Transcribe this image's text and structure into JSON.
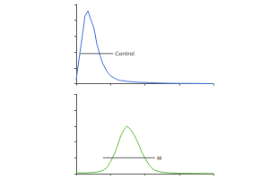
{
  "chart_data": [
    {
      "type": "line",
      "color": "#3a6fd8",
      "log": "x",
      "grid": false,
      "tick_labels": false,
      "x": [
        1,
        1.2,
        1.5,
        1.8,
        2.2,
        2.7,
        3.3,
        4,
        5,
        6,
        8,
        10,
        13,
        16,
        20,
        30,
        50,
        100,
        200,
        500,
        1000,
        10000
      ],
      "values": [
        5,
        30,
        60,
        85,
        92,
        80,
        70,
        50,
        35,
        25,
        15,
        10,
        7,
        5,
        4,
        3,
        2,
        1.5,
        1,
        0.5,
        0.3,
        0
      ],
      "xlim": [
        1,
        10000
      ],
      "xticks": [
        1,
        10,
        100,
        1000,
        10000
      ],
      "ylim": [
        0,
        100
      ],
      "yticks": [
        0,
        20,
        40,
        60,
        80,
        100
      ],
      "annotations": [
        {
          "text": "Control",
          "x": [
            1.3,
            12
          ],
          "y": 38
        }
      ]
    },
    {
      "type": "line",
      "color": "#5bbf3a",
      "log": "x",
      "grid": false,
      "tick_labels": false,
      "x": [
        1,
        2,
        4,
        6,
        8,
        10,
        13,
        16,
        20,
        25,
        30,
        40,
        50,
        65,
        80,
        100,
        130,
        160,
        200,
        300,
        500,
        1000,
        10000
      ],
      "values": [
        1,
        1,
        2,
        4,
        8,
        15,
        25,
        35,
        48,
        56,
        60,
        55,
        48,
        38,
        28,
        20,
        12,
        7,
        4,
        2,
        1,
        0.5,
        0
      ],
      "xlim": [
        1,
        10000
      ],
      "xticks": [
        1,
        10,
        100,
        1000,
        10000
      ],
      "ylim": [
        0,
        100
      ],
      "yticks": [
        0,
        20,
        40,
        60,
        80,
        100
      ],
      "annotations": [
        {
          "text": "M",
          "x": [
            6,
            200
          ],
          "y": 20
        }
      ]
    }
  ]
}
